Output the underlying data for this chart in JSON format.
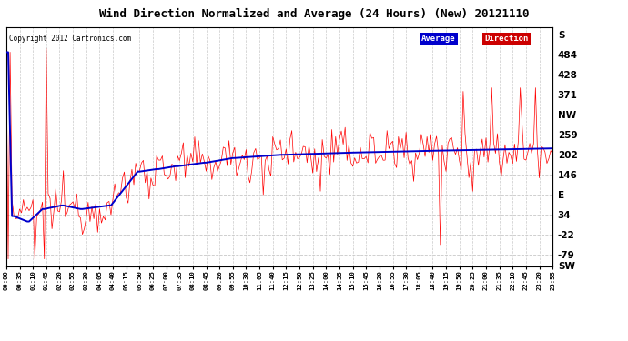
{
  "title": "Wind Direction Normalized and Average (24 Hours) (New) 20121110",
  "copyright": "Copyright 2012 Cartronics.com",
  "background_color": "#ffffff",
  "plot_bg_color": "#ffffff",
  "grid_color": "#c8c8c8",
  "avg_color": "#0000cc",
  "dir_color": "#ff0000",
  "avg_linewidth": 1.4,
  "dir_linewidth": 0.5,
  "ymin": -110,
  "ymax": 560,
  "right_tick_positions": [
    540,
    484,
    428,
    371,
    315,
    259,
    202,
    146,
    90,
    34,
    -22,
    -79,
    -110
  ],
  "right_tick_labels": [
    "S",
    "484",
    "428",
    "371",
    "NW",
    "259",
    "202",
    "146",
    "E",
    "34",
    "-22",
    "-79",
    "SW"
  ],
  "legend_avg_color": "#0000cc",
  "legend_dir_color": "#cc0000"
}
